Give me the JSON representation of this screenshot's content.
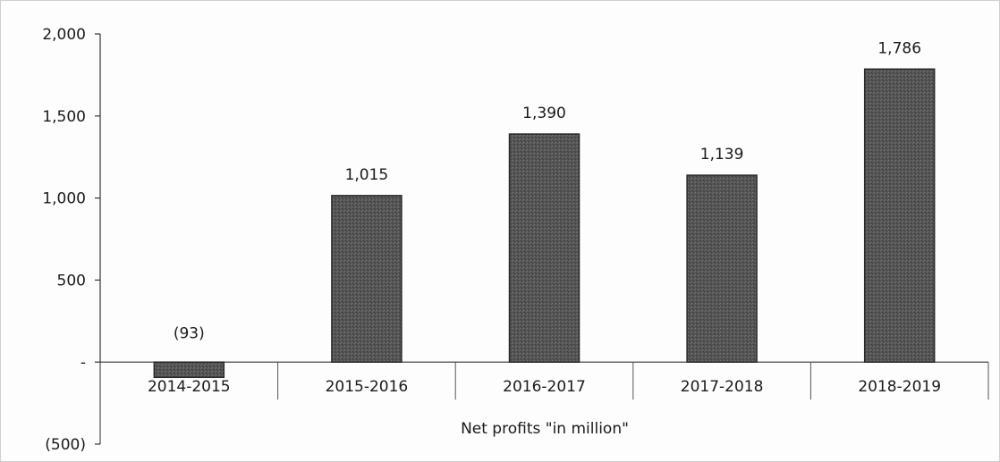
{
  "chart_data": {
    "type": "bar",
    "categories": [
      "2014-2015",
      "2015-2016",
      "2016-2017",
      "2017-2018",
      "2018-2019"
    ],
    "values": [
      -93,
      1015,
      1390,
      1139,
      1786
    ],
    "data_labels": [
      "(93)",
      "1,015",
      "1,390",
      "1,139",
      "1,786"
    ],
    "title": "",
    "xlabel": "Net profits \"in million\"",
    "ylabel": "",
    "ylim": [
      -500,
      2000
    ],
    "yticks": [
      {
        "value": 2000,
        "label": "2,000"
      },
      {
        "value": 1500,
        "label": "1,500"
      },
      {
        "value": 1000,
        "label": "1,000"
      },
      {
        "value": 500,
        "label": "500"
      },
      {
        "value": 0,
        "label": "-"
      },
      {
        "value": -500,
        "label": "(500)"
      }
    ],
    "grid": false,
    "legend": "none",
    "bar_color": "#4a4a4a",
    "bar_edge_color": "#2a2a2a"
  }
}
